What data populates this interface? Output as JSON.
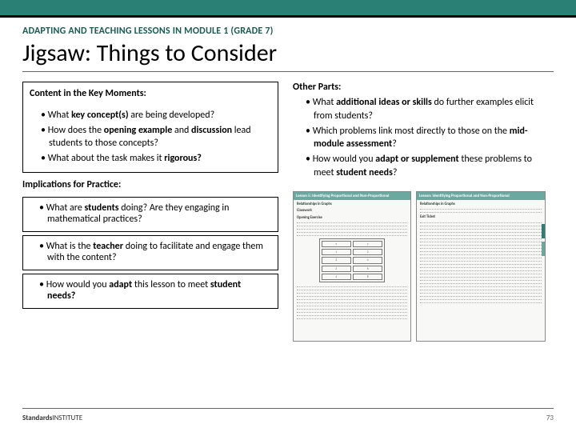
{
  "colors": {
    "accent": "#2a8074",
    "text": "#000000",
    "eyebrow": "#1a5b52",
    "rule": "#666666"
  },
  "eyebrow": "ADAPTING AND TEACHING LESSONS IN MODULE 1 (GRADE 7)",
  "headline": "Jigsaw: Things to Consider",
  "left": {
    "content_label": "Content in the Key Moments:",
    "content_bullets_html": [
      "What <b>key concept(s)</b> are being developed?",
      "How does the <b>opening example</b> and <b>discussion</b> lead students to those concepts?",
      "What about the task makes it <b>rigorous?</b>"
    ],
    "implications_label": "Implications for Practice:",
    "imp_boxes_html": [
      "What are <b>students</b> doing? Are they engaging in mathematical practices?",
      "What is the <b>teacher</b> doing to facilitate and engage them with the content?",
      "How would you <b>adapt</b> this lesson to meet <b>student needs?</b>"
    ]
  },
  "right": {
    "label": "Other Parts:",
    "bullets_html": [
      "What <b>additional ideas or skills</b> do further examples elicit from students?",
      "Which problems link most directly to those on the <b>mid-module assessment</b>?",
      "How would you <b>adapt or supplement</b> these problems to meet <b>student needs</b>?"
    ]
  },
  "worksheets": {
    "w1": {
      "header": "Lesson 5: Identifying Proportional and Non-Proportional",
      "sub1": "Relationships in Graphs",
      "sub2": "Classwork",
      "sub3": "Opening Exercise"
    },
    "w2": {
      "header": "Lesson: Identifying Proportional and Non-Proportional",
      "sub1": "Relationships in Graphs",
      "sub2": "Exit Ticket"
    }
  },
  "footer": {
    "logo_bold": "Standards",
    "logo_rest": "INSTITUTE",
    "page": "73"
  }
}
